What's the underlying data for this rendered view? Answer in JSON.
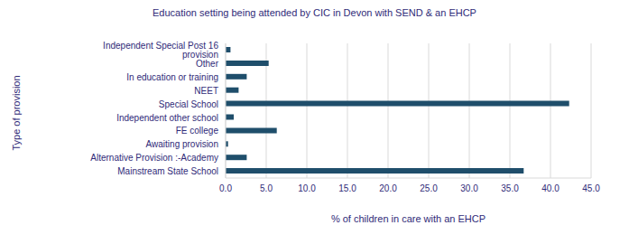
{
  "chart_data": {
    "type": "bar",
    "orientation": "horizontal",
    "title": "Education setting being attended by CIC in Devon with SEND & an EHCP",
    "x_label": "% of children in care with an EHCP",
    "y_label": "Type of provision",
    "categories": [
      "Independent Special Post 16 provision",
      "Other",
      "In education or training",
      "NEET",
      "Special School",
      "Independent other school",
      "FE college",
      "Awaiting provision",
      "Alternative Provision :-Academy",
      "Mainstream State School"
    ],
    "values": [
      0.6,
      5.3,
      2.6,
      1.6,
      42.3,
      1.0,
      6.3,
      0.3,
      2.6,
      36.7
    ],
    "color": "#1f4e6b",
    "xlim": [
      0,
      45
    ],
    "xticks": [
      {
        "value": 0,
        "label": "0.0"
      },
      {
        "value": 5,
        "label": "5.0"
      },
      {
        "value": 10,
        "label": "10.0"
      },
      {
        "value": 15,
        "label": "15.0"
      },
      {
        "value": 20,
        "label": "20.0"
      },
      {
        "value": 25,
        "label": "25.0"
      },
      {
        "value": 30,
        "label": "30.0"
      },
      {
        "value": 35,
        "label": "35.0"
      },
      {
        "value": 40,
        "label": "40.0"
      },
      {
        "value": 45,
        "label": "45.0"
      }
    ],
    "grid": true
  }
}
